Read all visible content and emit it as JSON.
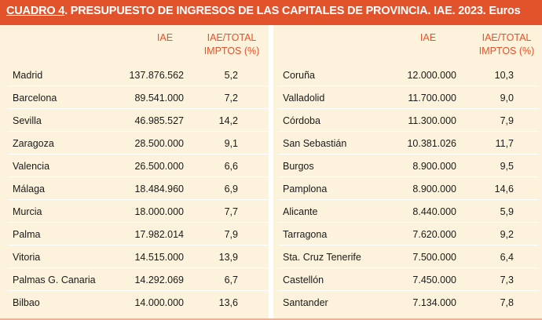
{
  "title": {
    "label": "CUADRO 4",
    "text": ". PRESUPUESTO DE INGRESOS DE LAS CAPITALES DE PROVINCIA. IAE. 2023. Euros"
  },
  "headers": {
    "iae": "IAE",
    "ratio_line1": "IAE/TOTAL",
    "ratio_line2": "IMPTOS (%)"
  },
  "left_rows": [
    {
      "city": "Madrid",
      "iae": "137.876.562",
      "pct": "5,2"
    },
    {
      "city": "Barcelona",
      "iae": "89.541.000",
      "pct": "7,2"
    },
    {
      "city": "Sevilla",
      "iae": "46.985.527",
      "pct": "14,2"
    },
    {
      "city": "Zaragoza",
      "iae": "28.500.000",
      "pct": "9,1"
    },
    {
      "city": "Valencia",
      "iae": "26.500.000",
      "pct": "6,6"
    },
    {
      "city": "Málaga",
      "iae": "18.484.960",
      "pct": "6,9"
    },
    {
      "city": "Murcia",
      "iae": "18.000.000",
      "pct": "7,7"
    },
    {
      "city": "Palma",
      "iae": "17.982.014",
      "pct": "7,9"
    },
    {
      "city": "Vitoria",
      "iae": "14.515.000",
      "pct": "13,9"
    },
    {
      "city": "Palmas  G. Canaria",
      "iae": "14.292.069",
      "pct": "6,7"
    },
    {
      "city": "Bilbao",
      "iae": "14.000.000",
      "pct": "13,6"
    }
  ],
  "right_rows": [
    {
      "city": "Coruña",
      "iae": "12.000.000",
      "pct": "10,3"
    },
    {
      "city": "Valladolid",
      "iae": "11.700.000",
      "pct": "9,0"
    },
    {
      "city": "Córdoba",
      "iae": "11.300.000",
      "pct": "7,9"
    },
    {
      "city": "San Sebastián",
      "iae": "10.381.026",
      "pct": "11,7"
    },
    {
      "city": "Burgos",
      "iae": "8.900.000",
      "pct": "9,5"
    },
    {
      "city": "Pamplona",
      "iae": "8.900.000",
      "pct": "14,6"
    },
    {
      "city": "Alicante",
      "iae": "8.440.000",
      "pct": "5,9"
    },
    {
      "city": "Tarragona",
      "iae": "7.620.000",
      "pct": "9,2"
    },
    {
      "city": "Sta. Cruz Tenerife",
      "iae": "7.500.000",
      "pct": "6,4"
    },
    {
      "city": "Castellón",
      "iae": "7.450.000",
      "pct": "7,3"
    },
    {
      "city": "Santander",
      "iae": "7.134.000",
      "pct": "7,8"
    }
  ],
  "colors": {
    "accent": "#e2522b",
    "background": "#fdf3dc",
    "rule": "#ffffff"
  }
}
